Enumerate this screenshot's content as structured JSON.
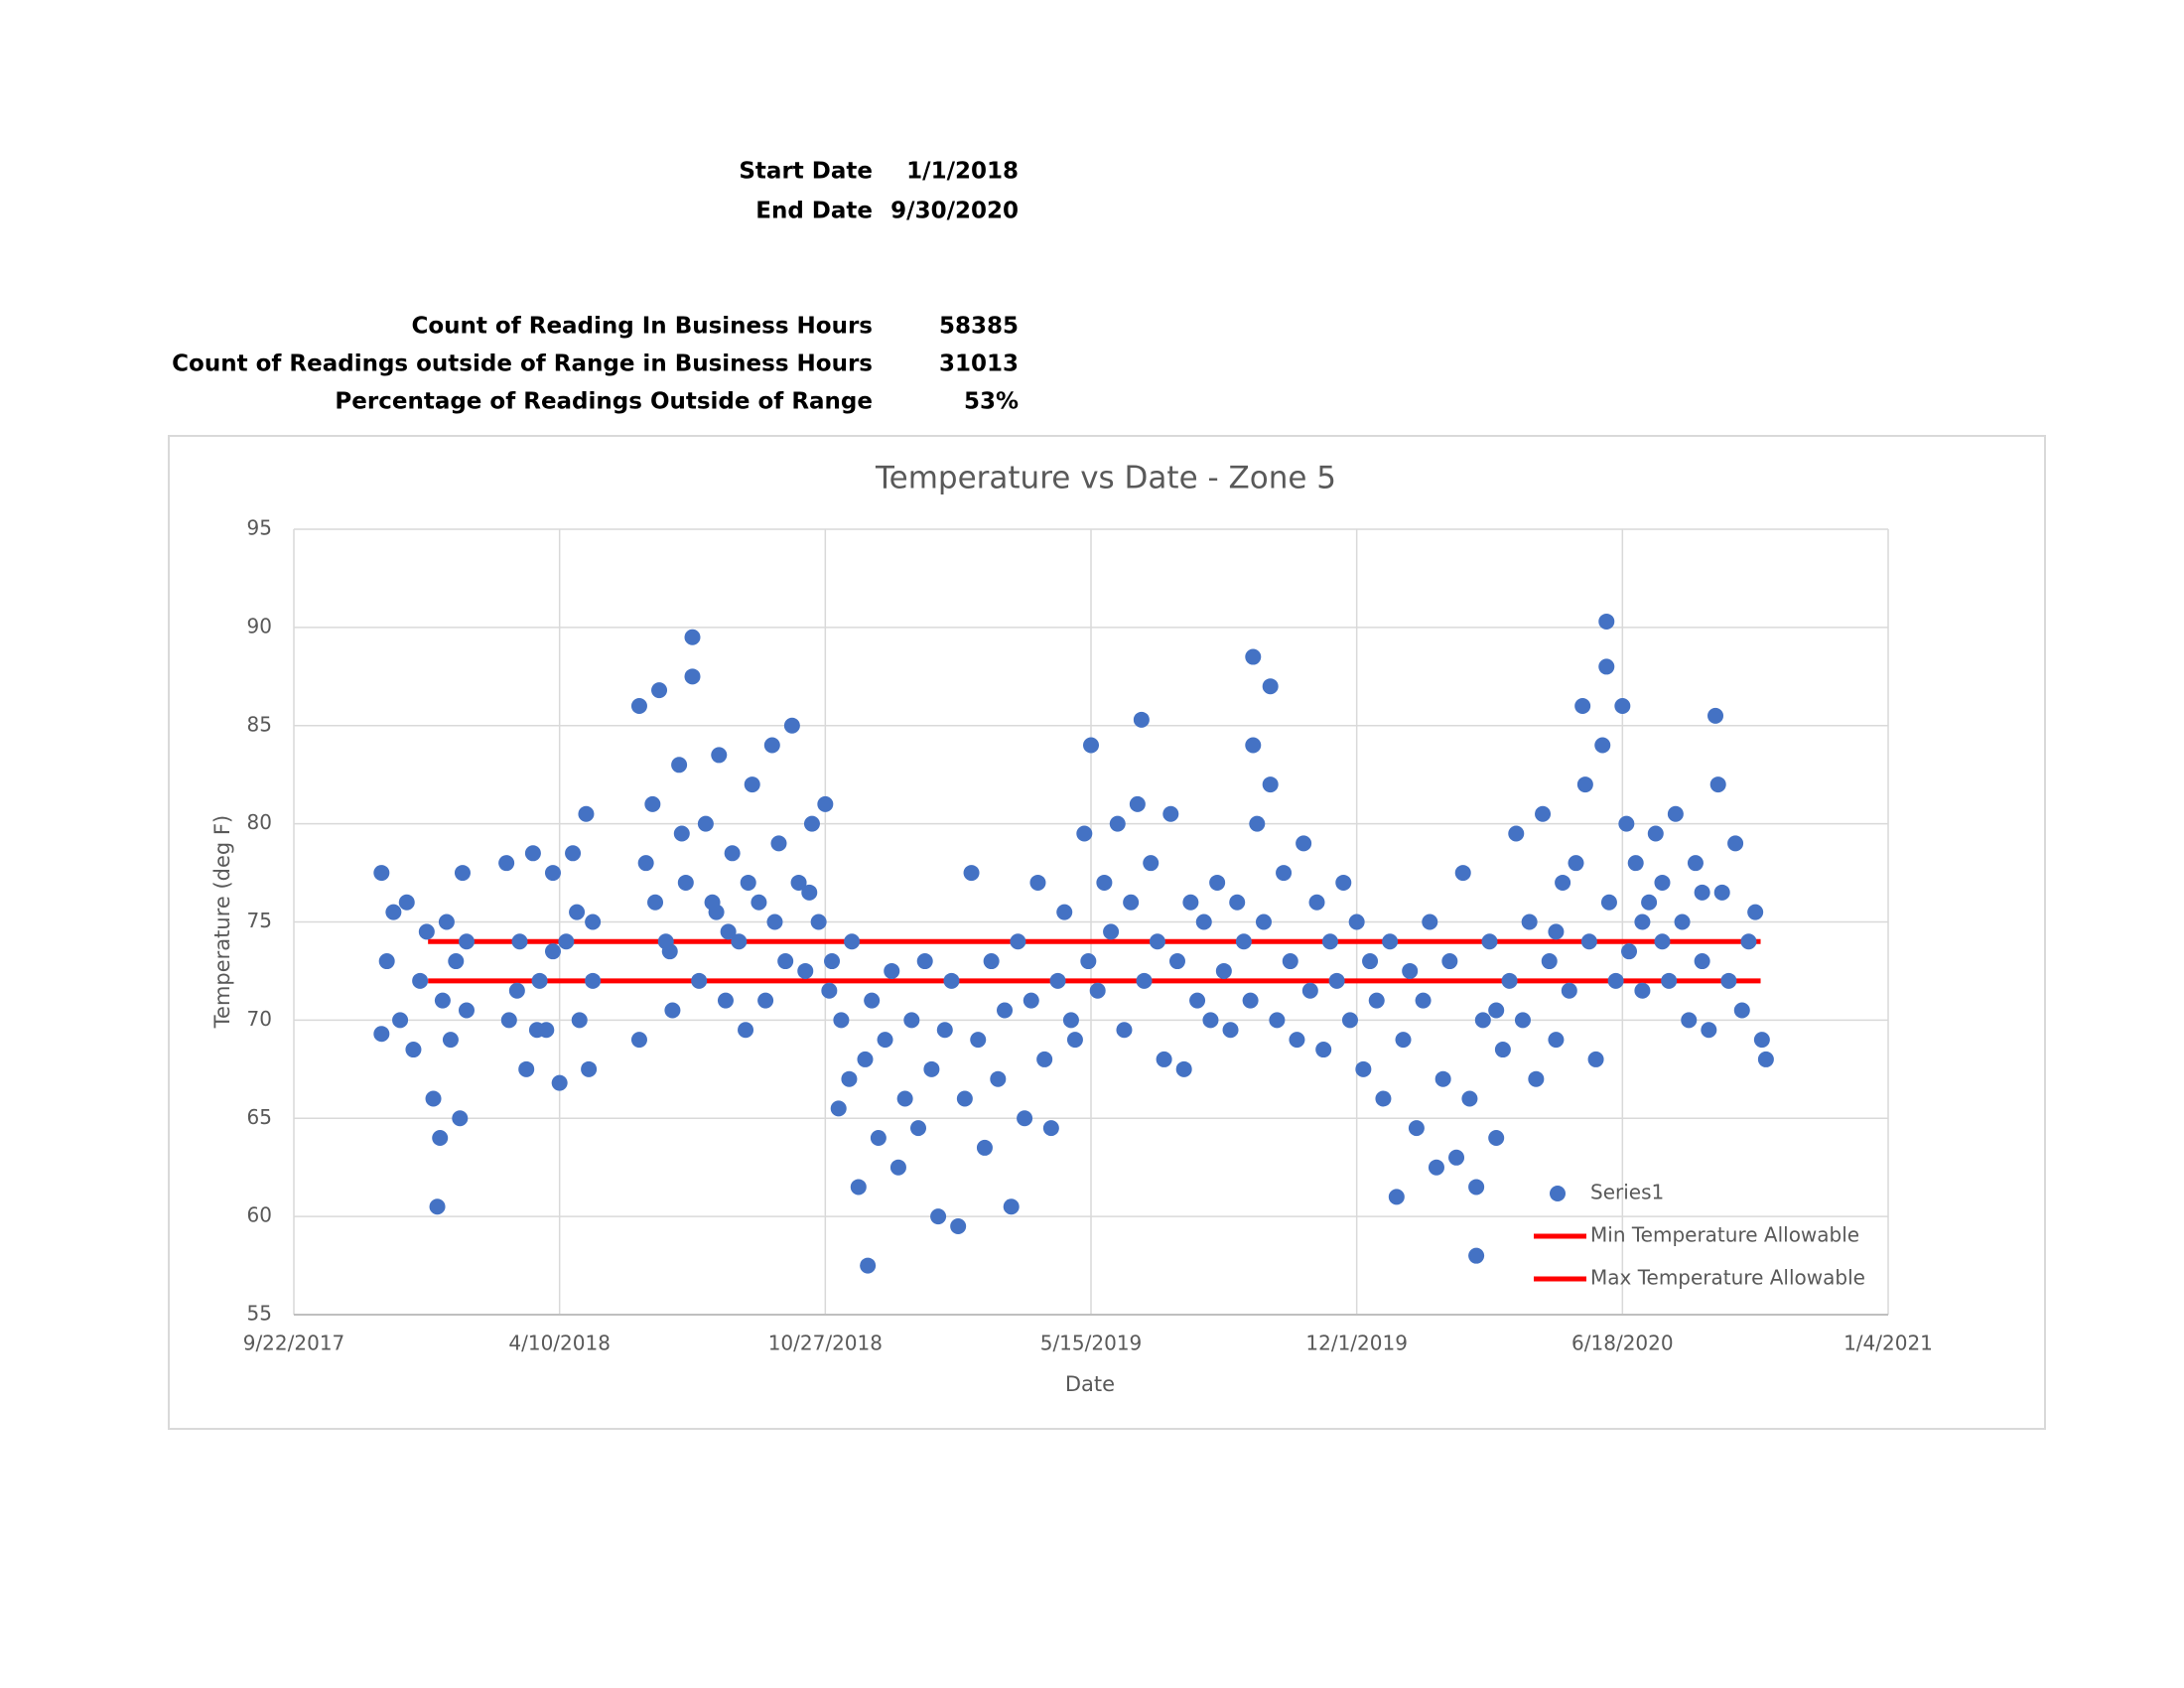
{
  "summary": {
    "rows": [
      {
        "label": "Start Date",
        "value": "1/1/2018"
      },
      {
        "label": "End Date",
        "value": "9/30/2020"
      },
      {
        "label": "Count of Reading In Business Hours",
        "value": "58385"
      },
      {
        "label": "Count of Readings outside of Range in Business Hours",
        "value": "31013"
      },
      {
        "label": "Percentage of Readings Outside of Range",
        "value": "53%"
      }
    ]
  },
  "chart_data": {
    "type": "scatter",
    "title": "Temperature vs Date - Zone 5",
    "x_label": "Date",
    "y_label": "Temperature (deg F)",
    "xlim": [
      43000,
      44200
    ],
    "xticks": [
      {
        "value": 43000,
        "label": "9/22/2017"
      },
      {
        "value": 43200,
        "label": "4/10/2018"
      },
      {
        "value": 43400,
        "label": "10/27/2018"
      },
      {
        "value": 43600,
        "label": "5/15/2019"
      },
      {
        "value": 43800,
        "label": "12/1/2019"
      },
      {
        "value": 44000,
        "label": "6/18/2020"
      },
      {
        "value": 44200,
        "label": "1/4/2021"
      }
    ],
    "ylim": [
      55,
      95
    ],
    "yticks": [
      55,
      60,
      65,
      70,
      75,
      80,
      85,
      90,
      95
    ],
    "grid": true,
    "legend": "bottom-right",
    "series": [
      {
        "name": "Series1",
        "color": "#4472c4",
        "mark": "marker",
        "x": [
          43066,
          43066,
          43070,
          43075,
          43080,
          43085,
          43090,
          43095,
          43100,
          43105,
          43108,
          43110,
          43112,
          43115,
          43118,
          43122,
          43125,
          43127,
          43130,
          43130,
          43160,
          43162,
          43170,
          43175,
          43180,
          43185,
          43190,
          43195,
          43200,
          43205,
          43210,
          43215,
          43220,
          43222,
          43225,
          43225,
          43168,
          43195,
          43213,
          43183,
          43260,
          43260,
          43265,
          43270,
          43275,
          43280,
          43285,
          43290,
          43295,
          43300,
          43300,
          43305,
          43310,
          43315,
          43320,
          43325,
          43330,
          43335,
          43340,
          43345,
          43350,
          43355,
          43360,
          43365,
          43370,
          43375,
          43380,
          43385,
          43390,
          43395,
          43400,
          43403,
          43272,
          43292,
          43318,
          43342,
          43362,
          43388,
          43283,
          43327,
          43405,
          43410,
          43412,
          43418,
          43420,
          43425,
          43430,
          43432,
          43435,
          43440,
          43445,
          43450,
          43455,
          43460,
          43465,
          43470,
          43475,
          43480,
          43485,
          43490,
          43495,
          43500,
          43505,
          43510,
          43515,
          43520,
          43525,
          43530,
          43535,
          43540,
          43545,
          43550,
          43555,
          43560,
          43565,
          43570,
          43575,
          43580,
          43585,
          43588,
          43595,
          43598,
          43600,
          43605,
          43610,
          43615,
          43620,
          43625,
          43630,
          43635,
          43638,
          43640,
          43645,
          43650,
          43655,
          43660,
          43665,
          43670,
          43675,
          43680,
          43685,
          43690,
          43695,
          43700,
          43705,
          43710,
          43715,
          43720,
          43722,
          43722,
          43725,
          43730,
          43735,
          43735,
          43740,
          43745,
          43750,
          43755,
          43760,
          43765,
          43770,
          43775,
          43780,
          43785,
          43790,
          43795,
          43800,
          43805,
          43810,
          43815,
          43820,
          43825,
          43830,
          43835,
          43840,
          43845,
          43850,
          43855,
          43860,
          43865,
          43870,
          43875,
          43880,
          43885,
          43890,
          43890,
          43895,
          43900,
          43905,
          43910,
          43915,
          43920,
          43925,
          43930,
          43935,
          43940,
          43945,
          43950,
          43955,
          43960,
          43965,
          43970,
          43972,
          43975,
          43980,
          43985,
          43988,
          43988,
          43990,
          43995,
          44000,
          44003,
          44005,
          44010,
          44015,
          44020,
          44025,
          44030,
          44035,
          44040,
          44045,
          44050,
          44055,
          44060,
          44065,
          44070,
          44072,
          44075,
          44080,
          44085,
          44090,
          44095,
          44100,
          44105,
          44108,
          44060,
          44030,
          44015,
          43950,
          43905
        ],
        "values": [
          77.5,
          69.3,
          73,
          75.5,
          70,
          76,
          68.5,
          72,
          74.5,
          66,
          60.5,
          64,
          71,
          75,
          69,
          73,
          65,
          77.5,
          70.5,
          74,
          78,
          70,
          74,
          67.5,
          78.5,
          72,
          69.5,
          77.5,
          66.8,
          74,
          78.5,
          70,
          80.5,
          67.5,
          75,
          72,
          71.5,
          73.5,
          75.5,
          69.5,
          86,
          69,
          78,
          81,
          86.8,
          74,
          70.5,
          83,
          77,
          89.5,
          87.5,
          72,
          80,
          76,
          83.5,
          71,
          78.5,
          74,
          69.5,
          82,
          76,
          71,
          84,
          79,
          73,
          85,
          77,
          72.5,
          80,
          75,
          81,
          71.5,
          76,
          79.5,
          75.5,
          77,
          75,
          76.5,
          73.5,
          74.5,
          73,
          65.5,
          70,
          67,
          74,
          61.5,
          68,
          57.5,
          71,
          64,
          69,
          72.5,
          62.5,
          66,
          70,
          64.5,
          73,
          67.5,
          60,
          69.5,
          72,
          59.5,
          66,
          77.5,
          69,
          63.5,
          73,
          67,
          70.5,
          60.5,
          74,
          65,
          71,
          77,
          68,
          64.5,
          72,
          75.5,
          70,
          69,
          79.5,
          73,
          84,
          71.5,
          77,
          74.5,
          80,
          69.5,
          76,
          81,
          85.3,
          72,
          78,
          74,
          68,
          80.5,
          73,
          67.5,
          76,
          71,
          75,
          70,
          77,
          72.5,
          69.5,
          76,
          74,
          71,
          88.5,
          84,
          80,
          75,
          87,
          82,
          70,
          77.5,
          73,
          69,
          79,
          71.5,
          76,
          68.5,
          74,
          72,
          77,
          70,
          75,
          67.5,
          73,
          71,
          66,
          74,
          61,
          69,
          72.5,
          64.5,
          71,
          75,
          62.5,
          67,
          73,
          63,
          77.5,
          66,
          58,
          61.5,
          70,
          74,
          64,
          68.5,
          72,
          79.5,
          70,
          75,
          67,
          80.5,
          73,
          69,
          77,
          71.5,
          78,
          86,
          82,
          74,
          68,
          84,
          90.3,
          88,
          76,
          72,
          86,
          80,
          73.5,
          78,
          71.5,
          76,
          79.5,
          74,
          72,
          80.5,
          75,
          70,
          78,
          73,
          69.5,
          85.5,
          82,
          76.5,
          72,
          79,
          70.5,
          74,
          75.5,
          69,
          68,
          76.5,
          77,
          75,
          74.5,
          70.5
        ]
      },
      {
        "name": "Min Temperature Allowable",
        "color": "#ff0000",
        "mark": "line",
        "x": [
          43101,
          44104
        ],
        "values": [
          72,
          72
        ]
      },
      {
        "name": "Max Temperature Allowable",
        "color": "#ff0000",
        "mark": "line",
        "x": [
          43101,
          44104
        ],
        "values": [
          74,
          74
        ]
      }
    ]
  }
}
